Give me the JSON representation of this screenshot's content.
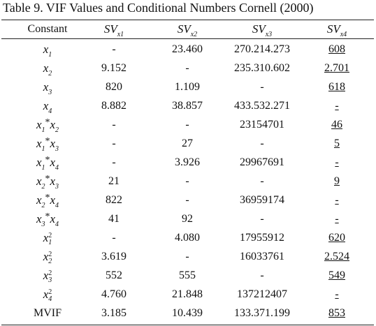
{
  "title": "Table 9. VIF Values and Conditional Numbers Cornell (2000)",
  "table": {
    "underline_last_column": true,
    "header": [
      {
        "text": "Constant"
      },
      {
        "text": "SV",
        "sub": "x1"
      },
      {
        "text": "SV",
        "sub": "x2"
      },
      {
        "text": "SV",
        "sub": "x3"
      },
      {
        "text": "SV",
        "sub": "x4"
      }
    ],
    "rows": [
      {
        "label": {
          "terms": [
            {
              "var": "x",
              "sub": "1"
            }
          ]
        },
        "cells": [
          "-",
          "23.460",
          "270.214.273",
          "608"
        ]
      },
      {
        "label": {
          "terms": [
            {
              "var": "x",
              "sub": "2"
            }
          ]
        },
        "cells": [
          "9.152",
          "-",
          "235.310.602",
          "2.701"
        ]
      },
      {
        "label": {
          "terms": [
            {
              "var": "x",
              "sub": "3"
            }
          ]
        },
        "cells": [
          "820",
          "1.109",
          "-",
          "618"
        ]
      },
      {
        "label": {
          "terms": [
            {
              "var": "x",
              "sub": "4"
            }
          ]
        },
        "cells": [
          "8.882",
          "38.857",
          "433.532.271",
          "-"
        ]
      },
      {
        "label": {
          "terms": [
            {
              "var": "x",
              "sub": "1"
            },
            {
              "var": "x",
              "sub": "2"
            }
          ],
          "joiner": "*"
        },
        "cells": [
          "-",
          "-",
          "23154701",
          "46"
        ]
      },
      {
        "label": {
          "terms": [
            {
              "var": "x",
              "sub": "1"
            },
            {
              "var": "x",
              "sub": "3"
            }
          ],
          "joiner": "*"
        },
        "cells": [
          "-",
          "27",
          "-",
          "5"
        ]
      },
      {
        "label": {
          "terms": [
            {
              "var": "x",
              "sub": "1"
            },
            {
              "var": "x",
              "sub": "4"
            }
          ],
          "joiner": "*"
        },
        "cells": [
          "-",
          "3.926",
          "29967691",
          "-"
        ]
      },
      {
        "label": {
          "terms": [
            {
              "var": "x",
              "sub": "2"
            },
            {
              "var": "x",
              "sub": "3"
            }
          ],
          "joiner": "*"
        },
        "cells": [
          "21",
          "-",
          "-",
          "9"
        ]
      },
      {
        "label": {
          "terms": [
            {
              "var": "x",
              "sub": "2"
            },
            {
              "var": "x",
              "sub": "4"
            }
          ],
          "joiner": "*"
        },
        "cells": [
          "822",
          "-",
          "36959174",
          "-"
        ]
      },
      {
        "label": {
          "terms": [
            {
              "var": "x",
              "sub": "3"
            },
            {
              "var": "x",
              "sub": "4"
            }
          ],
          "joiner": "*"
        },
        "cells": [
          "41",
          "92",
          "-",
          "-"
        ]
      },
      {
        "label": {
          "terms": [
            {
              "var": "x",
              "sub": "1",
              "sup": "2"
            }
          ]
        },
        "cells": [
          "-",
          "4.080",
          "17955912",
          "620"
        ]
      },
      {
        "label": {
          "terms": [
            {
              "var": "x",
              "sub": "2",
              "sup": "2"
            }
          ]
        },
        "cells": [
          "3.619",
          "-",
          "16033761",
          "2.524"
        ]
      },
      {
        "label": {
          "terms": [
            {
              "var": "x",
              "sub": "3",
              "sup": "2"
            }
          ]
        },
        "cells": [
          "552",
          "555",
          "-",
          "549"
        ]
      },
      {
        "label": {
          "terms": [
            {
              "var": "x",
              "sub": "4",
              "sup": "2"
            }
          ]
        },
        "cells": [
          "4.760",
          "21.848",
          "137212407",
          "-"
        ]
      },
      {
        "label": {
          "text": "MVIF"
        },
        "cells": [
          "3.185",
          "10.439",
          "133.371.199",
          "853"
        ]
      }
    ]
  }
}
